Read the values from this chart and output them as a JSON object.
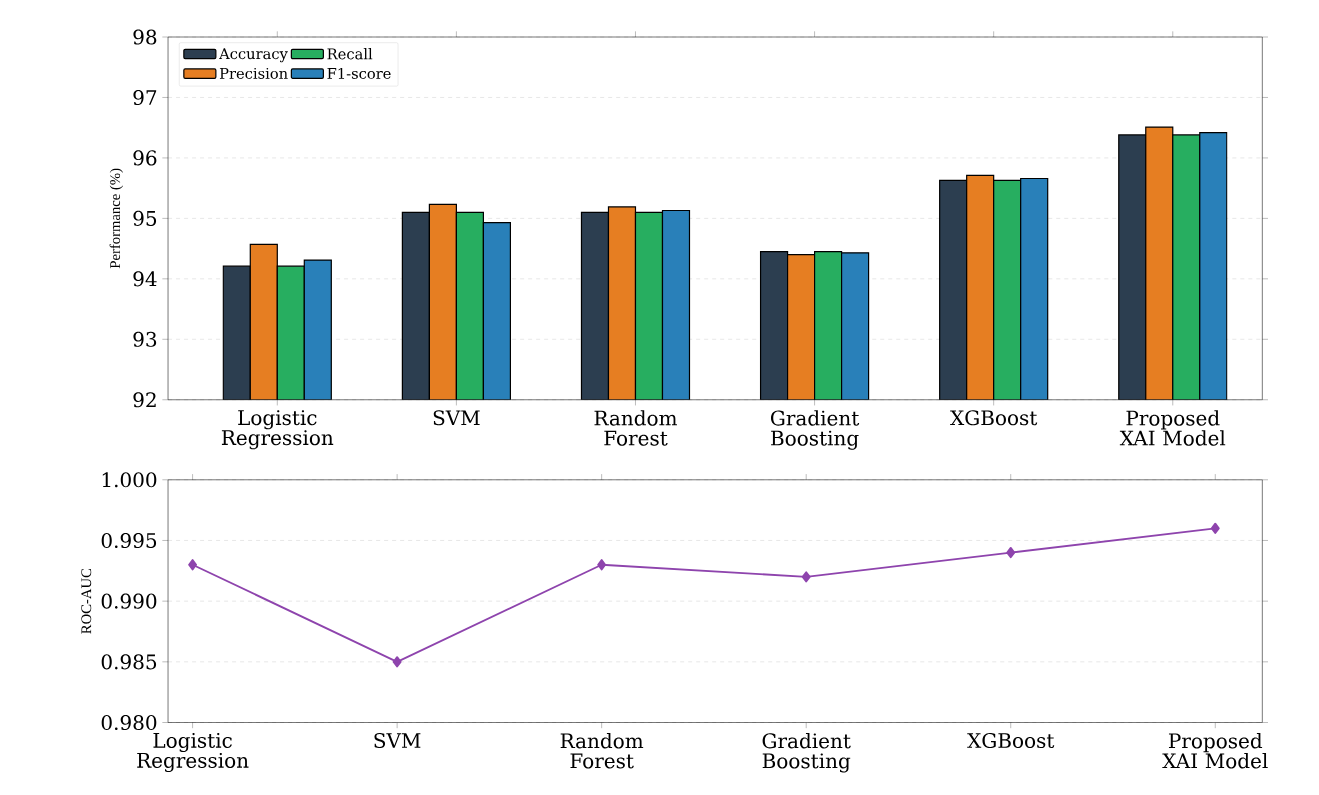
{
  "chart_data": [
    {
      "type": "bar",
      "ylabel": "Performance (%)",
      "categories": [
        "Logistic Regression",
        "SVM",
        "Random Forest",
        "Gradient Boosting",
        "XGBoost",
        "Proposed XAI Model"
      ],
      "series": [
        {
          "name": "Accuracy",
          "color": "#2c3e50",
          "values": [
            94.21,
            95.1,
            95.1,
            94.45,
            95.63,
            96.38
          ]
        },
        {
          "name": "Precision",
          "color": "#e67e22",
          "values": [
            94.57,
            95.23,
            95.19,
            94.4,
            95.71,
            96.51
          ]
        },
        {
          "name": "Recall",
          "color": "#27ae60",
          "values": [
            94.21,
            95.1,
            95.1,
            94.45,
            95.63,
            96.38
          ]
        },
        {
          "name": "F1-score",
          "color": "#2980b9",
          "values": [
            94.31,
            94.93,
            95.13,
            94.43,
            95.66,
            96.42
          ]
        }
      ],
      "ylim": [
        92,
        98
      ],
      "yticks": [
        92,
        93,
        94,
        95,
        96,
        97,
        98
      ],
      "grid": "y",
      "legend": "top left"
    },
    {
      "type": "line",
      "ylabel": "ROC-AUC",
      "categories": [
        "Logistic Regression",
        "SVM",
        "Random Forest",
        "Gradient Boosting",
        "XGBoost",
        "Proposed XAI Model"
      ],
      "series": [
        {
          "color": "#8e44ad",
          "values": [
            0.993,
            0.985,
            0.993,
            0.992,
            0.994,
            0.996
          ]
        }
      ],
      "ylim": [
        0.98,
        1.0
      ],
      "yticks": [
        {
          "value": 0.98,
          "label": "0.980"
        },
        {
          "value": 0.985,
          "label": "0.985"
        },
        {
          "value": 0.99,
          "label": "0.990"
        },
        {
          "value": 0.995,
          "label": "0.995"
        },
        {
          "value": 1.0,
          "label": "1.000"
        }
      ],
      "grid": "y",
      "marker": "diamond"
    }
  ]
}
